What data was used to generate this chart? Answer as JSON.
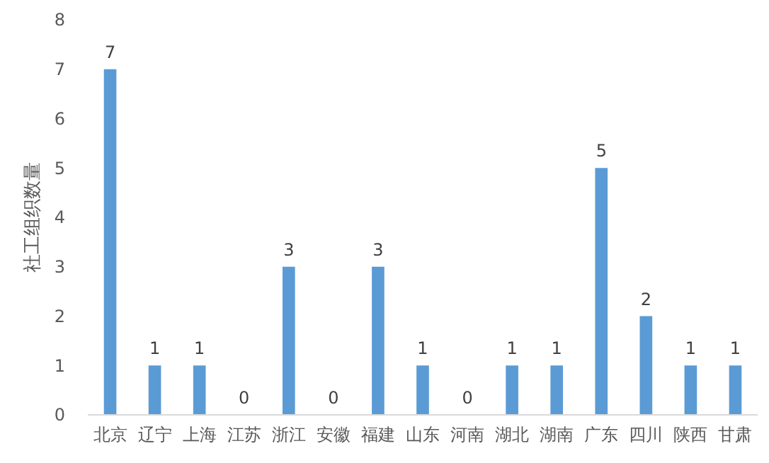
{
  "chart_data": {
    "type": "bar",
    "ylabel": "社工组织数量",
    "categories": [
      "北京",
      "辽宁",
      "上海",
      "江苏",
      "浙江",
      "安徽",
      "福建",
      "山东",
      "河南",
      "湖北",
      "湖南",
      "广东",
      "四川",
      "陕西",
      "甘肃"
    ],
    "values": [
      7,
      1,
      1,
      0,
      3,
      0,
      3,
      1,
      0,
      1,
      1,
      5,
      2,
      1,
      1
    ],
    "color": "#5b9bd5",
    "ylim": [
      0,
      8
    ],
    "yticks": [
      0,
      1,
      2,
      3,
      4,
      5,
      6,
      7,
      8
    ],
    "data_labels": true
  }
}
